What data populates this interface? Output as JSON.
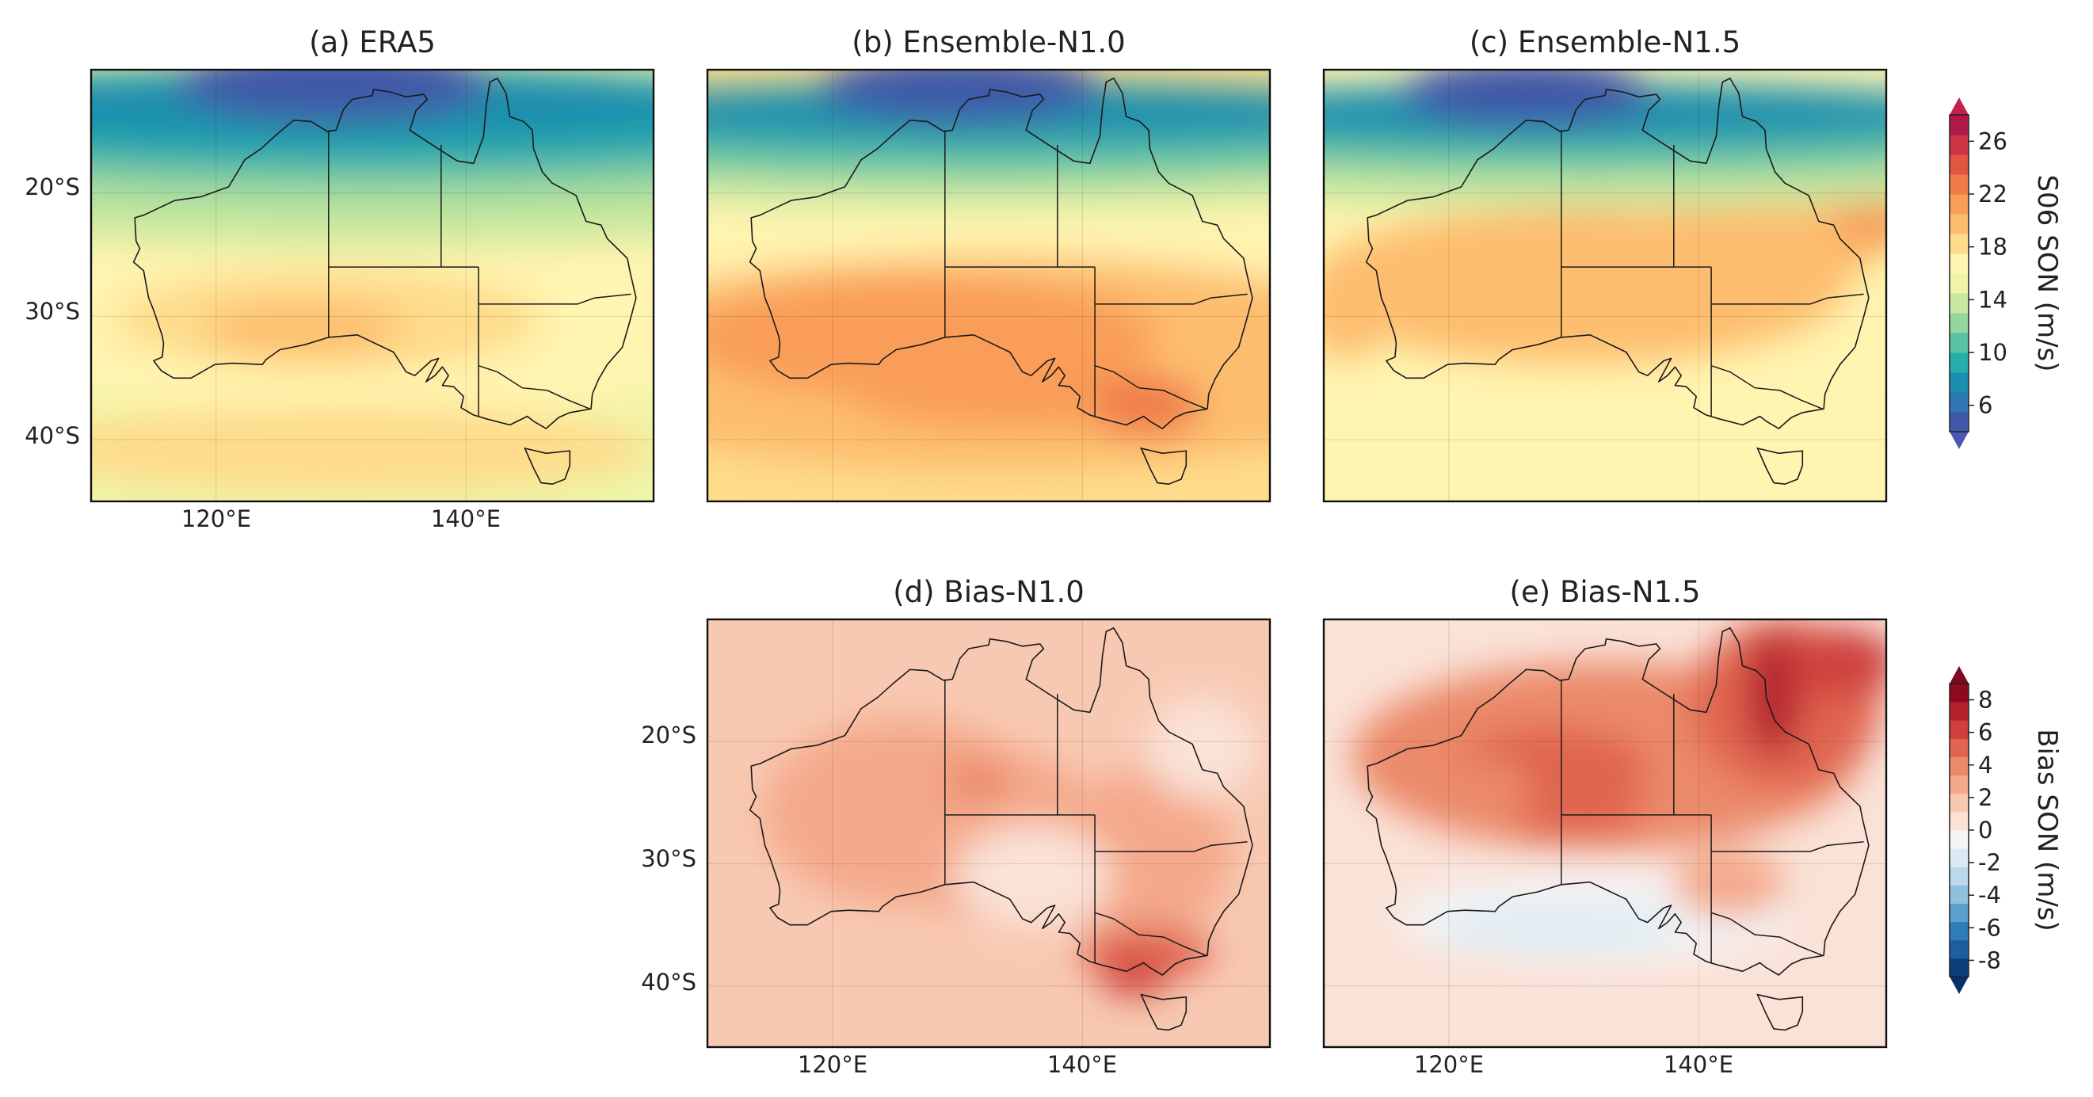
{
  "chart_data": [
    {
      "type": "heatmap",
      "title": "(a) ERA5",
      "field": "ws",
      "variant": 0,
      "xticks": [
        "120°E",
        "140°E"
      ],
      "yticks": [
        "20°S",
        "30°S",
        "40°S"
      ]
    },
    {
      "type": "heatmap",
      "title": "(b) Ensemble-N1.0",
      "field": "ws",
      "variant": 1,
      "xticks": [],
      "yticks": []
    },
    {
      "type": "heatmap",
      "title": "(c) Ensemble-N1.5",
      "field": "ws",
      "variant": 2,
      "xticks": [],
      "yticks": []
    },
    {
      "type": "heatmap",
      "title": "(d) Bias-N1.0",
      "field": "bias",
      "variant": 1,
      "xticks": [
        "120°E",
        "140°E"
      ],
      "yticks": [
        "20°S",
        "30°S",
        "40°S"
      ]
    },
    {
      "type": "heatmap",
      "title": "(e) Bias-N1.5",
      "field": "bias",
      "variant": 2,
      "xticks": [
        "120°E",
        "140°E"
      ],
      "yticks": []
    }
  ],
  "colorbars": [
    {
      "label": "S06 SON (m/s)",
      "ticks": [
        "6",
        "10",
        "14",
        "18",
        "22",
        "26"
      ],
      "colors": [
        "#3f58a8",
        "#2f78b4",
        "#1b8fae",
        "#26aeac",
        "#58c2a5",
        "#95d59f",
        "#c7e89f",
        "#eef5a8",
        "#fff4b0",
        "#fedc8b",
        "#fdbd6e",
        "#f99d59",
        "#f07b4a",
        "#e2563f",
        "#cc3343",
        "#b01849"
      ]
    },
    {
      "label": "Bias SON (m/s)",
      "ticks": [
        "-8",
        "-6",
        "-4",
        "-2",
        "0",
        "2",
        "4",
        "6",
        "8"
      ],
      "colors": [
        "#0a3f78",
        "#1c5e9e",
        "#2e7cb8",
        "#5b9fcc",
        "#8fc1de",
        "#bcd9ea",
        "#dcebf3",
        "#f3f5f7",
        "#fae2d7",
        "#f8c9b2",
        "#f4a98a",
        "#eb8a6a",
        "#e06550",
        "#cf3f3c",
        "#b5202d",
        "#8c0a1f"
      ]
    }
  ],
  "map": {
    "lon_range": [
      110,
      155
    ],
    "lat_range": [
      -45,
      -10
    ]
  }
}
